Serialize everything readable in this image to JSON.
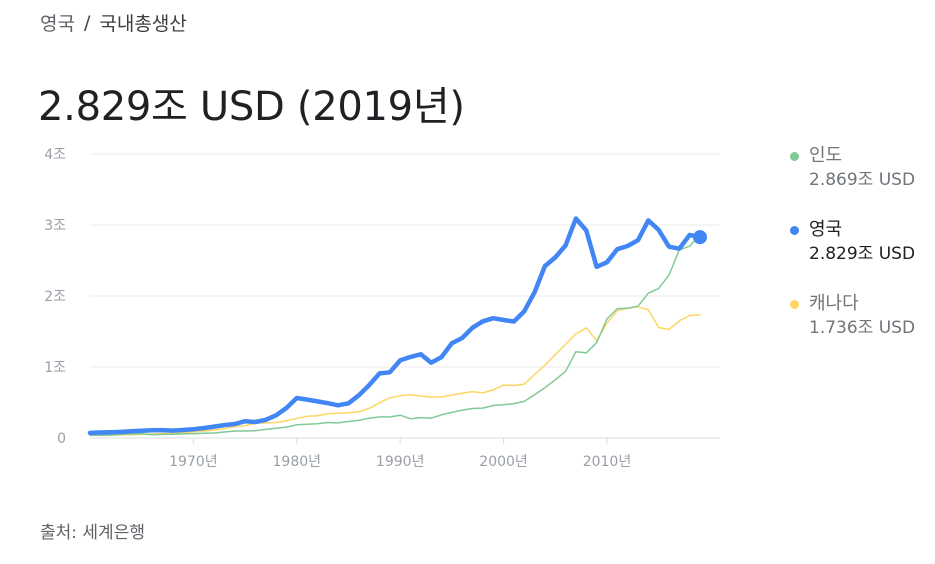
{
  "breadcrumb": {
    "parent": "영국",
    "separator": "/",
    "current": "국내총생산"
  },
  "headline": "2.829조 USD (2019년)",
  "legend": [
    {
      "name": "인도",
      "value": "2.869조 USD"
    },
    {
      "name": "영국",
      "value": "2.829조 USD"
    },
    {
      "name": "캐나다",
      "value": "1.736조 USD"
    }
  ],
  "source": "출처: 세계은행",
  "colors": {
    "india": "#81c995",
    "uk": "#4285f4",
    "canada": "#fdd663"
  },
  "chart_data": {
    "type": "line",
    "ylim": [
      0,
      4
    ],
    "xlim": [
      1960,
      2019
    ],
    "grid": true,
    "legend_position": "right",
    "y_ticks": [
      {
        "value": 0,
        "label": "0"
      },
      {
        "value": 1,
        "label": "1조"
      },
      {
        "value": 2,
        "label": "2조"
      },
      {
        "value": 3,
        "label": "3조"
      },
      {
        "value": 4,
        "label": "4조"
      }
    ],
    "x_ticks": [
      {
        "value": 1970,
        "label": "1970년"
      },
      {
        "value": 1980,
        "label": "1980년"
      },
      {
        "value": 1990,
        "label": "1990년"
      },
      {
        "value": 2000,
        "label": "2000년"
      },
      {
        "value": 2010,
        "label": "2010년"
      }
    ],
    "series": [
      {
        "name": "인도",
        "color": "#81c995",
        "x": [
          1960,
          1961,
          1962,
          1963,
          1964,
          1965,
          1966,
          1967,
          1968,
          1969,
          1970,
          1971,
          1972,
          1973,
          1974,
          1975,
          1976,
          1977,
          1978,
          1979,
          1980,
          1981,
          1982,
          1983,
          1984,
          1985,
          1986,
          1987,
          1988,
          1989,
          1990,
          1991,
          1992,
          1993,
          1994,
          1995,
          1996,
          1997,
          1998,
          1999,
          2000,
          2001,
          2002,
          2003,
          2004,
          2005,
          2006,
          2007,
          2008,
          2009,
          2010,
          2011,
          2012,
          2013,
          2014,
          2015,
          2016,
          2017,
          2018,
          2019
        ],
        "values": [
          0.037,
          0.039,
          0.042,
          0.049,
          0.056,
          0.059,
          0.046,
          0.05,
          0.053,
          0.058,
          0.062,
          0.067,
          0.071,
          0.085,
          0.099,
          0.098,
          0.103,
          0.121,
          0.137,
          0.153,
          0.186,
          0.193,
          0.2,
          0.218,
          0.212,
          0.232,
          0.248,
          0.279,
          0.297,
          0.296,
          0.321,
          0.27,
          0.288,
          0.279,
          0.327,
          0.36,
          0.393,
          0.415,
          0.421,
          0.458,
          0.468,
          0.485,
          0.515,
          0.608,
          0.709,
          0.82,
          0.94,
          1.216,
          1.199,
          1.342,
          1.676,
          1.823,
          1.828,
          1.857,
          2.039,
          2.104,
          2.295,
          2.651,
          2.702,
          2.869
        ]
      },
      {
        "name": "영국",
        "color": "#4285f4",
        "x": [
          1960,
          1961,
          1962,
          1963,
          1964,
          1965,
          1966,
          1967,
          1968,
          1969,
          1970,
          1971,
          1972,
          1973,
          1974,
          1975,
          1976,
          1977,
          1978,
          1979,
          1980,
          1981,
          1982,
          1983,
          1984,
          1985,
          1986,
          1987,
          1988,
          1989,
          1990,
          1991,
          1992,
          1993,
          1994,
          1995,
          1996,
          1997,
          1998,
          1999,
          2000,
          2001,
          2002,
          2003,
          2004,
          2005,
          2006,
          2007,
          2008,
          2009,
          2010,
          2011,
          2012,
          2013,
          2014,
          2015,
          2016,
          2017,
          2018,
          2019
        ],
        "values": [
          0.072,
          0.077,
          0.081,
          0.086,
          0.094,
          0.101,
          0.108,
          0.111,
          0.104,
          0.113,
          0.124,
          0.14,
          0.16,
          0.182,
          0.197,
          0.237,
          0.226,
          0.256,
          0.32,
          0.422,
          0.564,
          0.541,
          0.515,
          0.49,
          0.461,
          0.489,
          0.601,
          0.745,
          0.91,
          0.926,
          1.093,
          1.142,
          1.179,
          1.061,
          1.14,
          1.335,
          1.409,
          1.553,
          1.643,
          1.687,
          1.662,
          1.641,
          1.785,
          2.054,
          2.421,
          2.544,
          2.713,
          3.092,
          2.923,
          2.411,
          2.475,
          2.659,
          2.704,
          2.786,
          3.065,
          2.933,
          2.694,
          2.666,
          2.861,
          2.829
        ]
      },
      {
        "name": "캐나다",
        "color": "#fdd663",
        "x": [
          1960,
          1961,
          1962,
          1963,
          1964,
          1965,
          1966,
          1967,
          1968,
          1969,
          1970,
          1971,
          1972,
          1973,
          1974,
          1975,
          1976,
          1977,
          1978,
          1979,
          1980,
          1981,
          1982,
          1983,
          1984,
          1985,
          1986,
          1987,
          1988,
          1989,
          1990,
          1991,
          1992,
          1993,
          1994,
          1995,
          1996,
          1997,
          1998,
          1999,
          2000,
          2001,
          2002,
          2003,
          2004,
          2005,
          2006,
          2007,
          2008,
          2009,
          2010,
          2011,
          2012,
          2013,
          2014,
          2015,
          2016,
          2017,
          2018,
          2019
        ],
        "values": [
          0.041,
          0.04,
          0.041,
          0.043,
          0.047,
          0.051,
          0.057,
          0.062,
          0.067,
          0.073,
          0.088,
          0.099,
          0.113,
          0.131,
          0.16,
          0.174,
          0.207,
          0.212,
          0.219,
          0.244,
          0.274,
          0.307,
          0.313,
          0.34,
          0.348,
          0.356,
          0.367,
          0.419,
          0.496,
          0.566,
          0.594,
          0.61,
          0.592,
          0.578,
          0.579,
          0.605,
          0.63,
          0.654,
          0.635,
          0.678,
          0.745,
          0.739,
          0.758,
          0.895,
          1.026,
          1.173,
          1.319,
          1.468,
          1.552,
          1.371,
          1.617,
          1.793,
          1.828,
          1.847,
          1.806,
          1.556,
          1.528,
          1.65,
          1.725,
          1.736
        ]
      }
    ]
  }
}
